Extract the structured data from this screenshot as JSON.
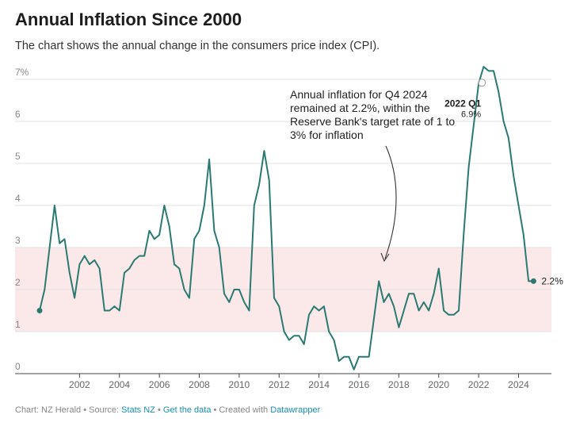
{
  "header": {
    "title": "Annual Inflation Since 2000",
    "subtitle": "The chart shows the annual change in the consumers price index (CPI)."
  },
  "footer": {
    "chart_by": "Chart: NZ Herald",
    "source_prefix": "Source:",
    "source": "Stats NZ",
    "get_data": "Get the data",
    "created_with": "Created with",
    "tool": "Datawrapper",
    "sep": "•"
  },
  "colors": {
    "line": "#2a7a72",
    "band": "#fbe9e9",
    "grid": "#e2e2e2",
    "zero": "#444444",
    "link": "#1a8fb5"
  },
  "chart_data": {
    "type": "line",
    "title": "Annual Inflation Since 2000",
    "subtitle": "The chart shows the annual change in the consumers price index (CPI).",
    "xlabel": "",
    "ylabel": "",
    "xlim": [
      2000.0,
      2025.25
    ],
    "ylim": [
      0,
      7
    ],
    "grid": true,
    "y_ticks": [
      {
        "value": 0,
        "label": "0"
      },
      {
        "value": 1,
        "label": "1"
      },
      {
        "value": 2,
        "label": "2"
      },
      {
        "value": 3,
        "label": "3"
      },
      {
        "value": 4,
        "label": "4"
      },
      {
        "value": 5,
        "label": "5"
      },
      {
        "value": 6,
        "label": "6"
      },
      {
        "value": 7,
        "label": "7%"
      }
    ],
    "x_ticks": [
      {
        "value": 2002,
        "label": "2002"
      },
      {
        "value": 2004,
        "label": "2004"
      },
      {
        "value": 2006,
        "label": "2006"
      },
      {
        "value": 2008,
        "label": "2008"
      },
      {
        "value": 2010,
        "label": "2010"
      },
      {
        "value": 2012,
        "label": "2012"
      },
      {
        "value": 2014,
        "label": "2014"
      },
      {
        "value": 2016,
        "label": "2016"
      },
      {
        "value": 2018,
        "label": "2018"
      },
      {
        "value": 2020,
        "label": "2020"
      },
      {
        "value": 2022,
        "label": "2022"
      },
      {
        "value": 2024,
        "label": "2024"
      }
    ],
    "target_band": [
      1,
      3
    ],
    "series": [
      {
        "x": [
          2000.0,
          2000.25,
          2000.5,
          2000.75,
          2001.0,
          2001.25,
          2001.5,
          2001.75,
          2002.0,
          2002.25,
          2002.5,
          2002.75,
          2003.0,
          2003.25,
          2003.5,
          2003.75,
          2004.0,
          2004.25,
          2004.5,
          2004.75,
          2005.0,
          2005.25,
          2005.5,
          2005.75,
          2006.0,
          2006.25,
          2006.5,
          2006.75,
          2007.0,
          2007.25,
          2007.5,
          2007.75,
          2008.0,
          2008.25,
          2008.5,
          2008.75,
          2009.0,
          2009.25,
          2009.5,
          2009.75,
          2010.0,
          2010.25,
          2010.5,
          2010.75,
          2011.0,
          2011.25,
          2011.5,
          2011.75,
          2012.0,
          2012.25,
          2012.5,
          2012.75,
          2013.0,
          2013.25,
          2013.5,
          2013.75,
          2014.0,
          2014.25,
          2014.5,
          2014.75,
          2015.0,
          2015.25,
          2015.5,
          2015.75,
          2016.0,
          2016.25,
          2016.5,
          2016.75,
          2017.0,
          2017.25,
          2017.5,
          2017.75,
          2018.0,
          2018.25,
          2018.5,
          2018.75,
          2019.0,
          2019.25,
          2019.5,
          2019.75,
          2020.0,
          2020.25,
          2020.5,
          2020.75,
          2021.0,
          2021.25,
          2021.5,
          2021.75,
          2022.0,
          2022.25,
          2022.5,
          2022.75,
          2023.0,
          2023.25,
          2023.5,
          2023.75,
          2024.0,
          2024.25,
          2024.5,
          2024.75
        ],
        "values": [
          1.5,
          2.0,
          3.0,
          4.0,
          3.1,
          3.2,
          2.4,
          1.8,
          2.6,
          2.8,
          2.6,
          2.7,
          2.5,
          1.5,
          1.5,
          1.6,
          1.5,
          2.4,
          2.5,
          2.7,
          2.8,
          2.8,
          3.4,
          3.2,
          3.3,
          4.0,
          3.5,
          2.6,
          2.5,
          2.0,
          1.8,
          3.2,
          3.4,
          4.0,
          5.1,
          3.4,
          3.0,
          1.9,
          1.7,
          2.0,
          2.0,
          1.7,
          1.5,
          4.0,
          4.5,
          5.3,
          4.6,
          1.8,
          1.6,
          1.0,
          0.8,
          0.9,
          0.9,
          0.7,
          1.4,
          1.6,
          1.5,
          1.6,
          1.0,
          0.8,
          0.3,
          0.4,
          0.4,
          0.1,
          0.4,
          0.4,
          0.4,
          1.3,
          2.2,
          1.7,
          1.9,
          1.6,
          1.1,
          1.5,
          1.9,
          1.9,
          1.5,
          1.7,
          1.5,
          1.9,
          2.5,
          1.5,
          1.4,
          1.4,
          1.5,
          3.3,
          4.9,
          5.9,
          6.9,
          7.3,
          7.2,
          7.2,
          6.7,
          6.0,
          5.6,
          4.7,
          4.0,
          3.3,
          2.2,
          2.2
        ]
      }
    ],
    "annotations": {
      "note": "Annual inflation for Q4 2024 remained at 2.2%, within the Reserve Bank's target rate of 1 to 3% for inflation",
      "note_lines": [
        "Annual inflation for Q4 2024",
        "remained at 2.2%, within the",
        "Reserve Bank's target rate of 1 to",
        "3% for inflation"
      ],
      "peak_label": "2022 Q1",
      "peak_value_label": "6.9%",
      "peak_x": 2022.0,
      "peak_y": 6.9,
      "end_label": "2.2%"
    }
  }
}
